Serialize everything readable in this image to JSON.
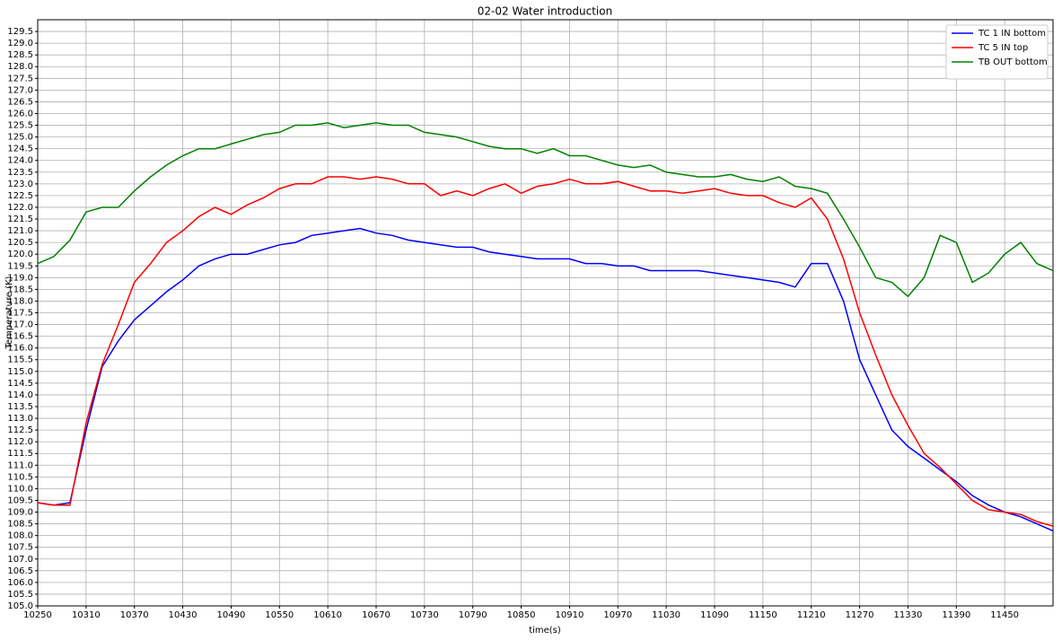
{
  "chart_data": {
    "type": "line",
    "title": "02-02 Water introduction",
    "x_label": "time(s)",
    "y_label": "Temperature (K)",
    "x": [
      10250,
      10270,
      10290,
      10310,
      10330,
      10350,
      10370,
      10390,
      10410,
      10430,
      10450,
      10470,
      10490,
      10510,
      10530,
      10550,
      10570,
      10590,
      10610,
      10630,
      10650,
      10670,
      10690,
      10710,
      10730,
      10750,
      10770,
      10790,
      10810,
      10830,
      10850,
      10870,
      10890,
      10910,
      10930,
      10950,
      10970,
      10990,
      11010,
      11030,
      11050,
      11070,
      11090,
      11110,
      11130,
      11150,
      11170,
      11190,
      11210,
      11230,
      11250,
      11270,
      11290,
      11310,
      11330,
      11350,
      11370,
      11390,
      11410,
      11430,
      11450,
      11470,
      11490,
      11510
    ],
    "series": [
      {
        "name": "TC 1 IN bottom",
        "color": "#0000ff",
        "values": [
          109.4,
          109.3,
          109.4,
          112.5,
          115.2,
          116.3,
          117.2,
          117.8,
          118.4,
          118.9,
          119.5,
          119.8,
          120.0,
          120.0,
          120.2,
          120.4,
          120.5,
          120.8,
          120.9,
          121.0,
          121.1,
          120.9,
          120.8,
          120.6,
          120.5,
          120.4,
          120.3,
          120.3,
          120.1,
          120.0,
          119.9,
          119.8,
          119.8,
          119.8,
          119.6,
          119.6,
          119.5,
          119.5,
          119.3,
          119.3,
          119.3,
          119.3,
          119.2,
          119.1,
          119.0,
          118.9,
          118.8,
          118.6,
          119.6,
          119.6,
          118.0,
          115.5,
          114.0,
          112.5,
          111.8,
          111.3,
          110.8,
          110.3,
          109.7,
          109.3,
          109.0,
          108.8,
          108.5,
          108.2
        ]
      },
      {
        "name": "TC 5 IN top",
        "color": "#ff0000",
        "values": [
          109.4,
          109.3,
          109.3,
          112.8,
          115.3,
          117.0,
          118.8,
          119.6,
          120.5,
          121.0,
          121.6,
          122.0,
          121.7,
          122.1,
          122.4,
          122.8,
          123.0,
          123.0,
          123.3,
          123.3,
          123.2,
          123.3,
          123.2,
          123.0,
          123.0,
          122.5,
          122.7,
          122.5,
          122.8,
          123.0,
          122.6,
          122.9,
          123.0,
          123.2,
          123.0,
          123.0,
          123.1,
          122.9,
          122.7,
          122.7,
          122.6,
          122.7,
          122.8,
          122.6,
          122.5,
          122.5,
          122.2,
          122.0,
          122.4,
          121.5,
          119.8,
          117.5,
          115.7,
          114.0,
          112.7,
          111.5,
          110.9,
          110.2,
          109.5,
          109.1,
          109.0,
          108.9,
          108.6,
          108.4
        ]
      },
      {
        "name": "TB OUT bottom",
        "color": "#008000",
        "values": [
          119.6,
          119.9,
          120.6,
          121.8,
          122.0,
          122.0,
          122.7,
          123.3,
          123.8,
          124.2,
          124.5,
          124.5,
          124.7,
          124.9,
          125.1,
          125.2,
          125.5,
          125.5,
          125.6,
          125.4,
          125.5,
          125.6,
          125.5,
          125.5,
          125.2,
          125.1,
          125.0,
          124.8,
          124.6,
          124.5,
          124.5,
          124.3,
          124.5,
          124.2,
          124.2,
          124.0,
          123.8,
          123.7,
          123.8,
          123.5,
          123.4,
          123.3,
          123.3,
          123.4,
          123.2,
          123.1,
          123.3,
          122.9,
          122.8,
          122.6,
          121.5,
          120.3,
          119.0,
          118.8,
          118.2,
          119.0,
          120.8,
          120.5,
          118.8,
          119.2,
          120.0,
          120.5,
          119.6,
          119.3
        ]
      }
    ],
    "xlim": [
      10250,
      11510
    ],
    "xticks": [
      10250,
      10310,
      10370,
      10430,
      10490,
      10550,
      10610,
      10670,
      10730,
      10790,
      10850,
      10910,
      10970,
      11030,
      11090,
      11150,
      11210,
      11270,
      11330,
      11390,
      11450
    ],
    "ylim": [
      105,
      130
    ],
    "yticks": [
      {
        "value": 105,
        "label": "105.0"
      },
      105.5,
      {
        "value": 106,
        "label": "106.0"
      },
      106.5,
      {
        "value": 107,
        "label": "107.0"
      },
      107.5,
      {
        "value": 108,
        "label": "108.0"
      },
      108.5,
      {
        "value": 109,
        "label": "109.0"
      },
      109.5,
      {
        "value": 110,
        "label": "110.0"
      },
      110.5,
      {
        "value": 111,
        "label": "111.0"
      },
      111.5,
      {
        "value": 112,
        "label": "112.0"
      },
      112.5,
      {
        "value": 113,
        "label": "113.0"
      },
      113.5,
      {
        "value": 114,
        "label": "114.0"
      },
      114.5,
      {
        "value": 115,
        "label": "115.0"
      },
      115.5,
      {
        "value": 116,
        "label": "116.0"
      },
      116.5,
      {
        "value": 117,
        "label": "117.0"
      },
      117.5,
      {
        "value": 118,
        "label": "118.0"
      },
      118.5,
      {
        "value": 119,
        "label": "119.0"
      },
      119.5,
      {
        "value": 120,
        "label": "120.0"
      },
      120.5,
      {
        "value": 121,
        "label": "121.0"
      },
      121.5,
      {
        "value": 122,
        "label": "122.0"
      },
      122.5,
      {
        "value": 123,
        "label": "123.0"
      },
      123.5,
      {
        "value": 124,
        "label": "124.0"
      },
      124.5,
      {
        "value": 125,
        "label": "125.0"
      },
      125.5,
      {
        "value": 126,
        "label": "126.0"
      },
      126.5,
      {
        "value": 127,
        "label": "127.0"
      },
      127.5,
      {
        "value": 128,
        "label": "128.0"
      },
      128.5,
      {
        "value": 129,
        "label": "129.0"
      },
      129.5
    ],
    "grid": true,
    "legend": "upper right"
  }
}
